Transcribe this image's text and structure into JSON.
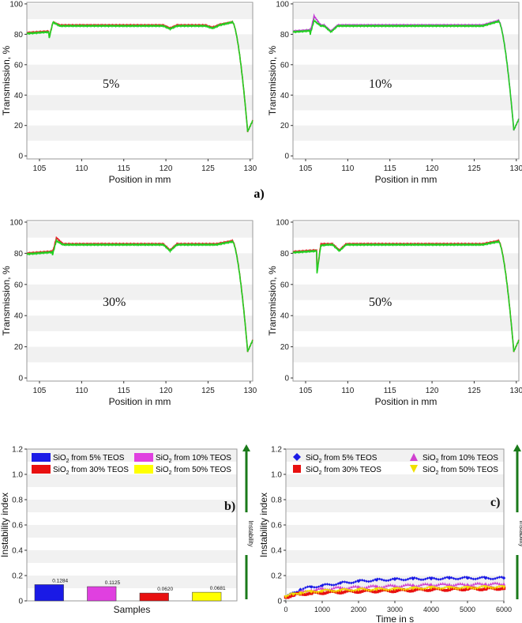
{
  "figure_labels": {
    "a": "a)",
    "b": "b)",
    "c": "c)"
  },
  "chart_data": [
    {
      "id": "a1",
      "type": "line",
      "annotation": "5%",
      "xlabel": "Position in mm",
      "ylabel": "Transmission, %",
      "xlim": [
        103.5,
        130.3
      ],
      "ylim": [
        -2,
        101
      ],
      "xticks": [
        105,
        110,
        115,
        120,
        125,
        130
      ],
      "yticks": [
        0,
        20,
        40,
        60,
        80,
        100
      ],
      "grid": "horizontal bands",
      "series": [
        {
          "name": "red",
          "color": "#e8202a",
          "profile": {
            "base": 81,
            "plateau": 86,
            "jumpX": 106.6,
            "spike": 88,
            "dipX": 106.4,
            "dip": 77,
            "bumps": [
              [
                120.5,
                84
              ],
              [
                125.5,
                84.5
              ]
            ],
            "peakX": 127.9,
            "peak": 88,
            "minX": 129.7,
            "min": 16
          }
        },
        {
          "name": "green",
          "color": "#22d022",
          "profile": {
            "base": 80.5,
            "plateau": 85.5,
            "jumpX": 106.6,
            "spike": 88,
            "dipX": 106.4,
            "dip": 76,
            "bumps": [
              [
                120.5,
                83.5
              ],
              [
                125.5,
                84
              ]
            ],
            "peakX": 127.9,
            "peak": 88,
            "minX": 129.7,
            "min": 16
          }
        }
      ]
    },
    {
      "id": "a2",
      "type": "line",
      "annotation": "10%",
      "xlabel": "Position in mm",
      "ylabel": "Transmission, %",
      "xlim": [
        103.5,
        130.3
      ],
      "ylim": [
        -2,
        101
      ],
      "xticks": [
        105,
        110,
        115,
        120,
        125,
        130
      ],
      "yticks": [
        0,
        20,
        40,
        60,
        80,
        100
      ],
      "grid": "horizontal bands",
      "series": [
        {
          "name": "magenta",
          "color": "#c23bd4",
          "profile": {
            "base": 82,
            "plateau": 86,
            "jumpX": 106.0,
            "spike": 92,
            "dipX": 106.0,
            "dip": 80,
            "bumps": [
              [
                108.0,
                82
              ]
            ],
            "peakX": 127.9,
            "peak": 89,
            "minX": 129.7,
            "min": 17
          }
        },
        {
          "name": "green",
          "color": "#22d022",
          "profile": {
            "base": 81.5,
            "plateau": 85.5,
            "jumpX": 106.0,
            "spike": 89,
            "dipX": 106.0,
            "dip": 79,
            "bumps": [
              [
                108.0,
                81.5
              ]
            ],
            "peakX": 127.9,
            "peak": 88.5,
            "minX": 129.7,
            "min": 17
          }
        }
      ]
    },
    {
      "id": "a3",
      "type": "line",
      "annotation": "30%",
      "xlabel": "Position in mm",
      "ylabel": "Transmission, %",
      "xlim": [
        103.5,
        130.3
      ],
      "ylim": [
        -2,
        101
      ],
      "xticks": [
        105,
        110,
        115,
        120,
        125,
        130
      ],
      "yticks": [
        0,
        20,
        40,
        60,
        80,
        100
      ],
      "grid": "horizontal bands",
      "series": [
        {
          "name": "red",
          "color": "#e8202a",
          "profile": {
            "base": 80,
            "plateau": 86,
            "jumpX": 107.0,
            "spike": 90,
            "dipX": 106.8,
            "dip": 79,
            "bumps": [
              [
                120.5,
                82
              ]
            ],
            "peakX": 127.9,
            "peak": 88,
            "minX": 129.7,
            "min": 17
          }
        },
        {
          "name": "green",
          "color": "#22d022",
          "profile": {
            "base": 79.5,
            "plateau": 85.5,
            "jumpX": 107.0,
            "spike": 88,
            "dipX": 106.8,
            "dip": 78,
            "bumps": [
              [
                120.5,
                81.5
              ]
            ],
            "peakX": 127.9,
            "peak": 87.5,
            "minX": 129.7,
            "min": 17
          }
        }
      ]
    },
    {
      "id": "a4",
      "type": "line",
      "annotation": "50%",
      "xlabel": "Position in mm",
      "ylabel": "Transmission, %",
      "xlim": [
        103.5,
        130.3
      ],
      "ylim": [
        -2,
        101
      ],
      "xticks": [
        105,
        110,
        115,
        120,
        125,
        130
      ],
      "yticks": [
        0,
        20,
        40,
        60,
        80,
        100
      ],
      "grid": "horizontal bands",
      "series": [
        {
          "name": "red",
          "color": "#e8202a",
          "profile": {
            "base": 81,
            "plateau": 86,
            "jumpX": 106.8,
            "spike": 86,
            "dipX": 106.6,
            "dip": 66,
            "bumps": [
              [
                109.0,
                82
              ]
            ],
            "peakX": 127.9,
            "peak": 88,
            "minX": 129.7,
            "min": 17
          }
        },
        {
          "name": "green",
          "color": "#22d022",
          "profile": {
            "base": 80.5,
            "plateau": 85.5,
            "jumpX": 106.8,
            "spike": 85,
            "dipX": 106.6,
            "dip": 65,
            "bumps": [
              [
                109.0,
                81.5
              ]
            ],
            "peakX": 127.9,
            "peak": 87.5,
            "minX": 129.7,
            "min": 17
          }
        }
      ]
    },
    {
      "id": "b",
      "type": "bar",
      "xlabel": "Samples",
      "ylabel": "Instability index",
      "ylim": [
        0,
        1.2
      ],
      "yticks": [
        0,
        0.2,
        0.4,
        0.6,
        0.8,
        1.0,
        1.2
      ],
      "ytick_labels": [
        "0",
        "0.2",
        "0.4",
        "0.6",
        "0.8",
        "1.0",
        "1.2"
      ],
      "arrow_label": "Instability",
      "categories": [
        "SiO2 from 5% TEOS",
        "SiO2 from 10% TEOS",
        "SiO2 from 30% TEOS",
        "SiO2 from 50% TEOS"
      ],
      "values": [
        0.1284,
        0.1125,
        0.062,
        0.0681
      ],
      "value_labels": [
        "0.1284",
        "0.1125",
        "0.0620",
        "0.0681"
      ],
      "colors": [
        "#1a1ae6",
        "#e040e0",
        "#e81010",
        "#ffff00"
      ],
      "legend": [
        {
          "prefix": "SiO",
          "sub": "2",
          "suffix": " from 5% TEOS",
          "color": "#1a1ae6"
        },
        {
          "prefix": "SiO",
          "sub": "2",
          "suffix": " from 10% TEOS",
          "color": "#e040e0"
        },
        {
          "prefix": "SiO",
          "sub": "2",
          "suffix": " from 30% TEOS",
          "color": "#e81010"
        },
        {
          "prefix": "SiO",
          "sub": "2",
          "suffix": " from 50% TEOS",
          "color": "#ffff00"
        }
      ],
      "legend_placement": "top"
    },
    {
      "id": "c",
      "type": "scatter",
      "xlabel": "Time in s",
      "ylabel": "Instability index",
      "xlim": [
        0,
        6000
      ],
      "ylim": [
        0,
        1.2
      ],
      "xticks": [
        0,
        1000,
        2000,
        3000,
        4000,
        5000,
        6000
      ],
      "yticks": [
        0,
        0.2,
        0.4,
        0.6,
        0.8,
        1.0,
        1.2
      ],
      "ytick_labels": [
        "0",
        "0.2",
        "0.4",
        "0.6",
        "0.8",
        "1.0",
        "1.2"
      ],
      "arrow_label": "Instability",
      "legend_placement": "top",
      "series": [
        {
          "name": "SiO2 from 5% TEOS",
          "prefix": "SiO",
          "sub": "2",
          "suffix": " from 5% TEOS",
          "marker": "diamond",
          "color": "#1a1ae6",
          "x": [
            0,
            200,
            400,
            700,
            1000,
            1500,
            2000,
            2500,
            3000,
            3500,
            4000,
            4500,
            5000,
            5500,
            6000
          ],
          "y": [
            0.03,
            0.06,
            0.09,
            0.11,
            0.12,
            0.14,
            0.155,
            0.165,
            0.17,
            0.175,
            0.175,
            0.18,
            0.18,
            0.18,
            0.18
          ]
        },
        {
          "name": "SiO2 from 10% TEOS",
          "prefix": "SiO",
          "sub": "2",
          "suffix": " from 10% TEOS",
          "marker": "triangle-up",
          "color": "#d040d0",
          "x": [
            0,
            200,
            400,
            700,
            1000,
            1500,
            2000,
            2500,
            3000,
            3500,
            4000,
            4500,
            5000,
            5500,
            6000
          ],
          "y": [
            0.03,
            0.05,
            0.07,
            0.085,
            0.095,
            0.105,
            0.11,
            0.115,
            0.12,
            0.125,
            0.13,
            0.13,
            0.13,
            0.135,
            0.135
          ]
        },
        {
          "name": "SiO2 from 30% TEOS",
          "prefix": "SiO",
          "sub": "2",
          "suffix": " from 30% TEOS",
          "marker": "square",
          "color": "#e81010",
          "x": [
            0,
            200,
            400,
            700,
            1000,
            1500,
            2000,
            2500,
            3000,
            3500,
            4000,
            4500,
            5000,
            5500,
            6000
          ],
          "y": [
            0.03,
            0.045,
            0.055,
            0.06,
            0.065,
            0.07,
            0.075,
            0.078,
            0.08,
            0.085,
            0.09,
            0.09,
            0.095,
            0.095,
            0.1
          ]
        },
        {
          "name": "SiO2 from 50% TEOS",
          "prefix": "SiO",
          "sub": "2",
          "suffix": " from 50% TEOS",
          "marker": "triangle-down",
          "color": "#f0e000",
          "x": [
            0,
            200,
            400,
            700,
            1000,
            1500,
            2000,
            2500,
            3000,
            3500,
            4000,
            4500,
            5000,
            5500,
            6000
          ],
          "y": [
            0.03,
            0.05,
            0.06,
            0.07,
            0.075,
            0.08,
            0.085,
            0.088,
            0.09,
            0.095,
            0.1,
            0.1,
            0.1,
            0.105,
            0.105
          ]
        }
      ]
    }
  ]
}
